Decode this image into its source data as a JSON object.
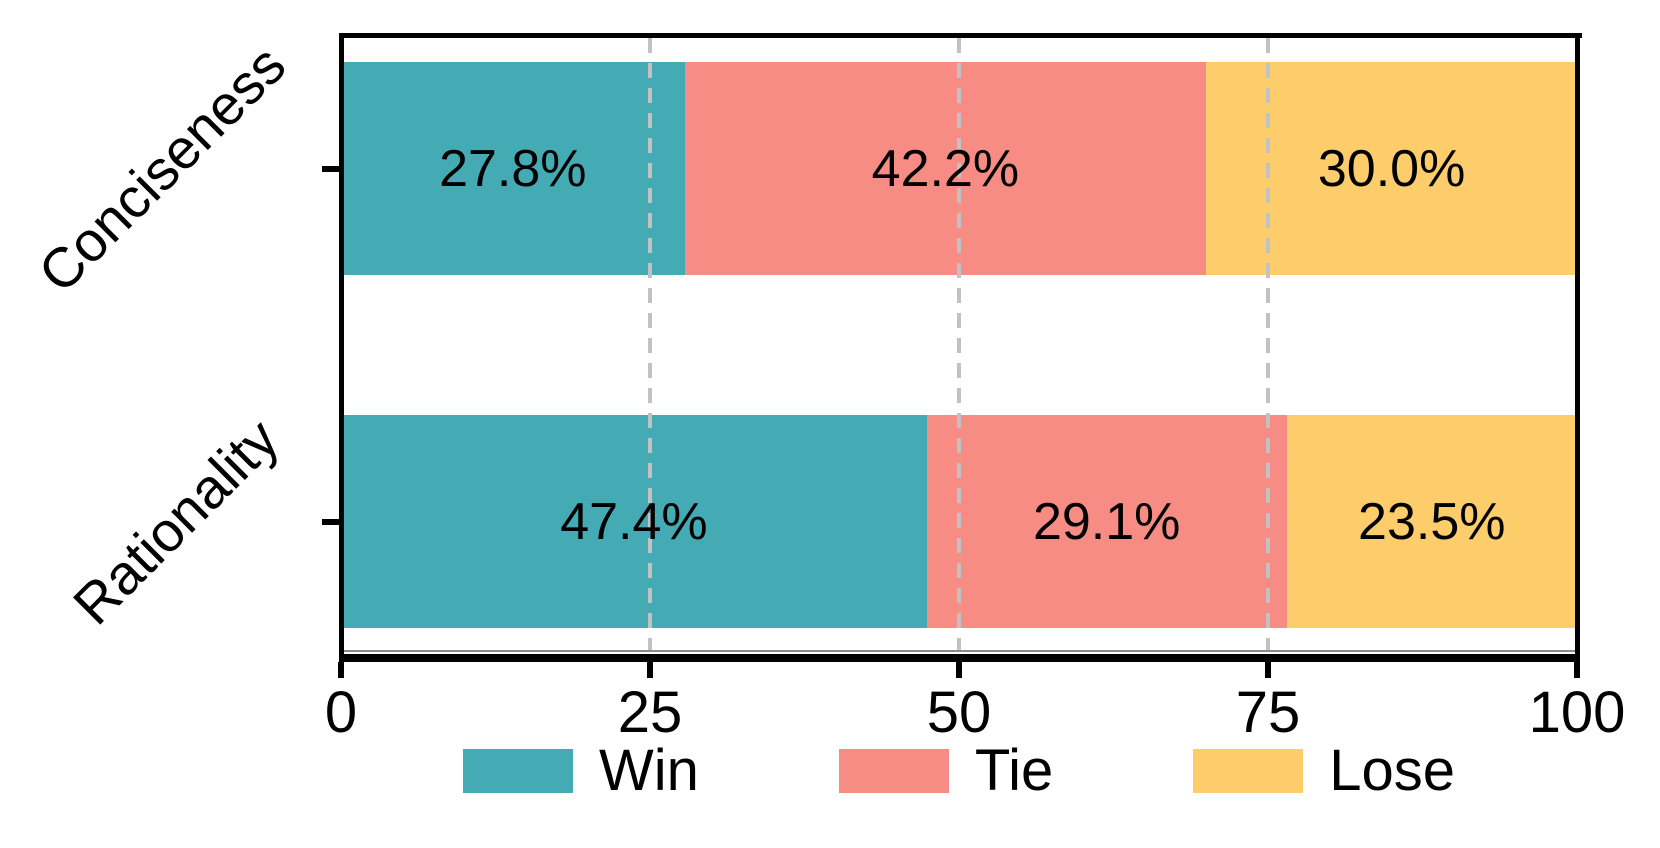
{
  "chart_data": {
    "type": "bar",
    "orientation": "horizontal",
    "stacked": true,
    "title": "",
    "xlabel": "",
    "ylabel": "",
    "categories": [
      "Conciseness",
      "Rationality"
    ],
    "series": [
      {
        "name": "Win",
        "color": "#44AAB4",
        "values": [
          27.8,
          47.4
        ]
      },
      {
        "name": "Tie",
        "color": "#F68C84",
        "values": [
          42.2,
          29.1
        ]
      },
      {
        "name": "Lose",
        "color": "#FDCC6B",
        "values": [
          30.0,
          23.5
        ]
      }
    ],
    "bar_labels": [
      [
        "27.8%",
        "42.2%",
        "30.0%"
      ],
      [
        "47.4%",
        "29.1%",
        "23.5%"
      ]
    ],
    "xlim": [
      0,
      100
    ],
    "x_ticks": [
      0,
      25,
      50,
      75,
      100
    ],
    "x_tick_labels": [
      "0",
      "25",
      "50",
      "75",
      "100"
    ],
    "gridlines": {
      "x_values": [
        25,
        50,
        75
      ],
      "style": "dashed",
      "color": "#C2C2C2"
    },
    "legend": {
      "position": "bottom",
      "entries": [
        {
          "label": "Win",
          "color": "#44AAB4"
        },
        {
          "label": "Tie",
          "color": "#F68C84"
        },
        {
          "label": "Lose",
          "color": "#FDCC6B"
        }
      ]
    }
  }
}
